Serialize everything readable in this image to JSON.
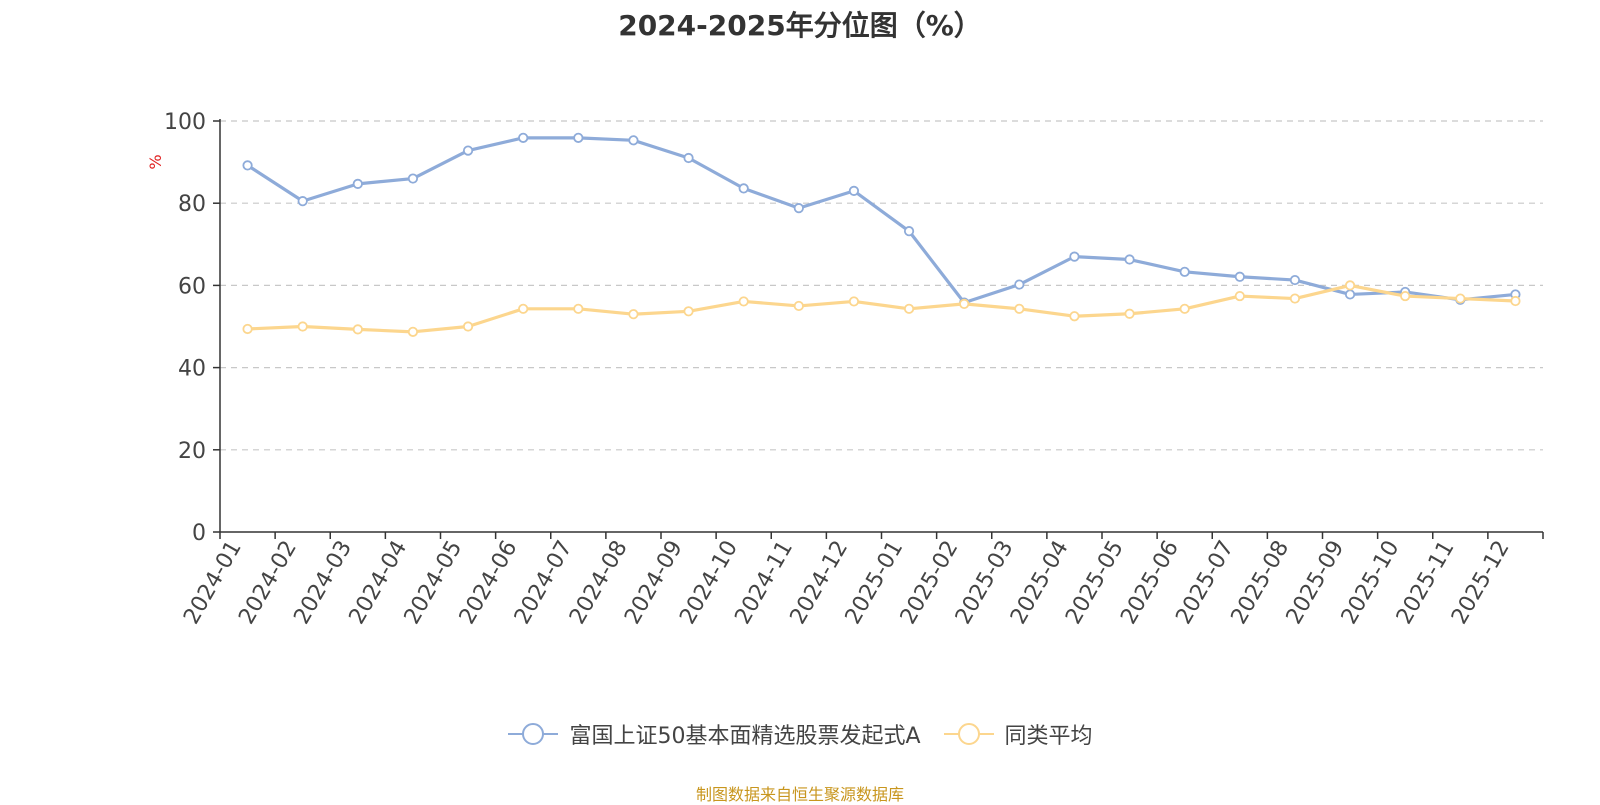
{
  "chart_data": {
    "type": "line",
    "title": "2024-2025年分位图（%）",
    "ylabel": "%",
    "xlabel": "",
    "ylim": [
      0,
      100
    ],
    "yticks": [
      "0",
      "20",
      "40",
      "60",
      "80",
      "100"
    ],
    "grid": true,
    "legend_position": "bottom-center",
    "categories": [
      "2024-01",
      "2024-02",
      "2024-03",
      "2024-04",
      "2024-05",
      "2024-06",
      "2024-07",
      "2024-08",
      "2024-09",
      "2024-10",
      "2024-11",
      "2024-12",
      "2025-01",
      "2025-02",
      "2025-03",
      "2025-04",
      "2025-05",
      "2025-06",
      "2025-07",
      "2025-08",
      "2025-09",
      "2025-10",
      "2025-11",
      "2025-12"
    ],
    "series": [
      {
        "name": "富国上证50基本面精选股票发起式A",
        "color": "#8eabd9",
        "values": [
          89.2,
          80.5,
          84.7,
          86.0,
          92.8,
          95.9,
          95.9,
          95.3,
          91.0,
          83.6,
          78.8,
          83.0,
          73.2,
          55.8,
          60.2,
          67.0,
          66.3,
          63.3,
          62.1,
          61.3,
          57.8,
          58.4,
          56.5,
          57.8
        ]
      },
      {
        "name": "同类平均",
        "color": "#fcd68e",
        "values": [
          49.4,
          50.0,
          49.3,
          48.7,
          50.0,
          54.3,
          54.3,
          53.0,
          53.7,
          56.1,
          55.0,
          56.1,
          54.3,
          55.5,
          54.3,
          52.5,
          53.1,
          54.3,
          57.4,
          56.8,
          60.0,
          57.4,
          56.8,
          56.2
        ]
      }
    ],
    "source_note": "制图数据来自恒生聚源数据库"
  }
}
